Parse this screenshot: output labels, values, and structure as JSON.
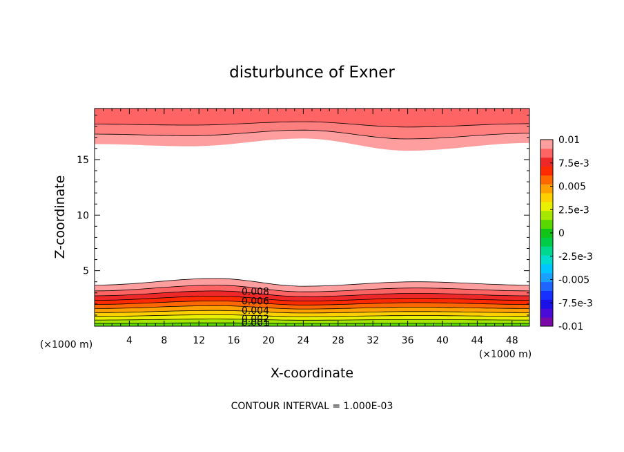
{
  "chart_data": {
    "type": "heatmap",
    "title": "disturbunce of Exner",
    "xlabel": "X-coordinate",
    "ylabel": "Z-coordinate",
    "x_unit": "(×1000 m)",
    "z_unit": "(×1000 m)",
    "xlim": [
      0,
      50
    ],
    "ylim": [
      0,
      19.6
    ],
    "x_ticks": [
      "4",
      "8",
      "12",
      "16",
      "20",
      "24",
      "28",
      "32",
      "36",
      "40",
      "44",
      "48"
    ],
    "y_ticks": [
      "5",
      "10",
      "15"
    ],
    "footer": "CONTOUR INTERVAL = 1.000E-03",
    "contour_interval": 0.001,
    "colorbar": {
      "range": [
        -0.01,
        0.01
      ],
      "labels": [
        "0.01",
        "7.5e-3",
        "0.005",
        "2.5e-3",
        "0",
        "-2.5e-3",
        "-0.005",
        "-7.5e-3",
        "-0.01"
      ],
      "levels": [
        {
          "value": -0.01,
          "color": "#7a0aa8"
        },
        {
          "value": -0.009,
          "color": "#4a0ad8"
        },
        {
          "value": -0.008,
          "color": "#1a10e8"
        },
        {
          "value": -0.007,
          "color": "#1530ff"
        },
        {
          "value": -0.006,
          "color": "#1f66ff"
        },
        {
          "value": -0.005,
          "color": "#1aa0ff"
        },
        {
          "value": -0.004,
          "color": "#00c6ff"
        },
        {
          "value": -0.003,
          "color": "#00dccc"
        },
        {
          "value": -0.002,
          "color": "#00d890"
        },
        {
          "value": -0.001,
          "color": "#00cc48"
        },
        {
          "value": 0.0,
          "color": "#10c418"
        },
        {
          "value": 0.001,
          "color": "#58d800"
        },
        {
          "value": 0.002,
          "color": "#a6e600"
        },
        {
          "value": 0.003,
          "color": "#e8f000"
        },
        {
          "value": 0.004,
          "color": "#ffd000"
        },
        {
          "value": 0.005,
          "color": "#ffa000"
        },
        {
          "value": 0.006,
          "color": "#ff6800"
        },
        {
          "value": 0.007,
          "color": "#ff2a00"
        },
        {
          "value": 0.008,
          "color": "#ee2828"
        },
        {
          "value": 0.009,
          "color": "#ff6464"
        },
        {
          "value": 0.01,
          "color": "#ff9e9e"
        }
      ]
    },
    "contour_labels": [
      "0.008",
      "0.006",
      "0.004",
      "0.002",
      "0.001"
    ],
    "regions": {
      "lower_band_top": [
        {
          "x": 0,
          "z": 3.7
        },
        {
          "x": 14,
          "z": 4.3
        },
        {
          "x": 24,
          "z": 3.6
        },
        {
          "x": 37,
          "z": 4.0
        },
        {
          "x": 50,
          "z": 3.7
        }
      ],
      "upper_band_bottom": [
        {
          "x": 0,
          "z": 16.4
        },
        {
          "x": 11,
          "z": 16.2
        },
        {
          "x": 24,
          "z": 16.9
        },
        {
          "x": 36,
          "z": 15.8
        },
        {
          "x": 50,
          "z": 16.5
        }
      ]
    }
  }
}
